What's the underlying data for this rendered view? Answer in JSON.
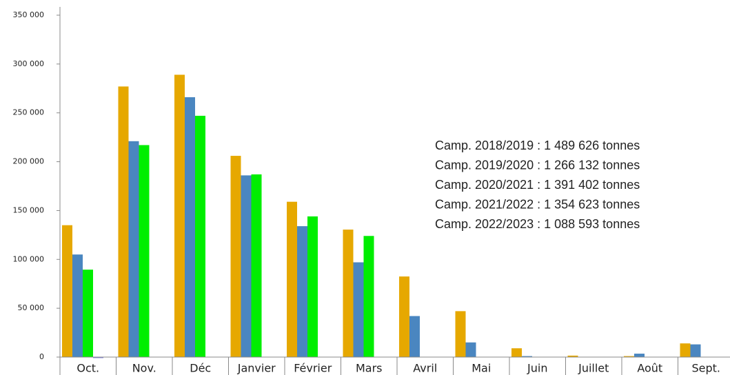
{
  "chart_data": {
    "type": "bar",
    "categories": [
      "Oct.",
      "Nov.",
      "Déc",
      "Janvier",
      "Février",
      "Mars",
      "Avril",
      "Mai",
      "Juin",
      "Juillet",
      "Août",
      "Sept."
    ],
    "series": [
      {
        "color": "#e6a800",
        "values": [
          135000,
          277000,
          289000,
          206000,
          159000,
          130500,
          82500,
          47000,
          9000,
          1500,
          1000,
          14000
        ]
      },
      {
        "color": "#4a86c0",
        "values": [
          105000,
          221000,
          266000,
          186000,
          134000,
          97000,
          42000,
          15000,
          1000,
          null,
          3500,
          13000
        ]
      },
      {
        "color": "#00ee00",
        "values": [
          89500,
          217000,
          247000,
          187000,
          144000,
          124000,
          null,
          null,
          null,
          null,
          null,
          null
        ]
      },
      {
        "color": "#7b7bd6",
        "values": [
          -1000,
          null,
          null,
          null,
          null,
          null,
          null,
          null,
          null,
          null,
          null,
          null
        ]
      }
    ],
    "ylim": [
      0,
      350000
    ],
    "yticks": [
      0,
      {
        "value": 50000,
        "label": "50 000"
      },
      {
        "value": 100000,
        "label": "100 000"
      },
      {
        "value": 150000,
        "label": "150 000"
      },
      {
        "value": 200000,
        "label": "200 000"
      },
      {
        "value": 250000,
        "label": "250 000"
      },
      {
        "value": 300000,
        "label": "300 000"
      },
      {
        "value": 350000,
        "label": "350 000"
      }
    ],
    "annotations": [
      "Camp. 2018/2019 : 1 489 626 tonnes",
      "Camp. 2019/2020 : 1 266 132 tonnes",
      "Camp. 2020/2021 : 1 391 402 tonnes",
      "Camp. 2021/2022 : 1 354 623 tonnes",
      "Camp. 2022/2023 : 1 088 593 tonnes"
    ]
  }
}
